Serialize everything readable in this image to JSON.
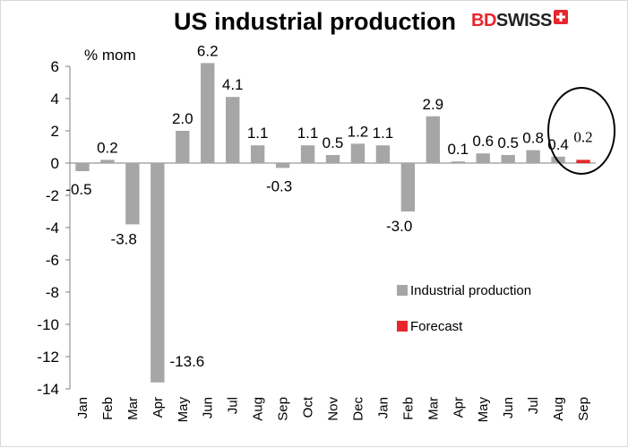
{
  "title": "US industrial production",
  "logo": {
    "brand_red": "BD",
    "brand_dark": "SWISS",
    "badge_icon": "swiss-cross-icon"
  },
  "chart_data": {
    "type": "bar",
    "title": "US industrial production",
    "ylabel": "% mom",
    "xlabel": "",
    "ylim": [
      -14,
      7
    ],
    "yticks": [
      6,
      4,
      2,
      0,
      -2,
      -4,
      -6,
      -8,
      -10,
      -12,
      -14
    ],
    "grid": false,
    "legend_position": "bottom-right",
    "categories": [
      "Jan",
      "Feb",
      "Mar",
      "Apr",
      "May",
      "Jun",
      "Jul",
      "Aug",
      "Sep",
      "Oct",
      "Nov",
      "Dec",
      "Jan",
      "Feb",
      "Mar",
      "Apr",
      "May",
      "Jun",
      "Jul",
      "Aug",
      "Sep"
    ],
    "series": [
      {
        "name": "Industrial production",
        "color": "#a6a6a6",
        "values": [
          -0.5,
          0.2,
          -3.8,
          -13.6,
          2.0,
          6.2,
          4.1,
          1.1,
          -0.3,
          1.1,
          0.5,
          1.2,
          1.1,
          -3.0,
          2.9,
          0.1,
          0.6,
          0.5,
          0.8,
          0.4,
          null
        ],
        "labels": [
          "-0.5",
          "0.2",
          "-3.8",
          "-13.6",
          "2.0",
          "6.2",
          "4.1",
          "1.1",
          "-0.3",
          "1.1",
          "0.5",
          "1.2",
          "1.1",
          "-3.0",
          "2.9",
          "0.1",
          "0.6",
          "0.5",
          "0.8",
          "0.4",
          ""
        ]
      },
      {
        "name": "Forecast",
        "color": "#e8262b",
        "values": [
          null,
          null,
          null,
          null,
          null,
          null,
          null,
          null,
          null,
          null,
          null,
          null,
          null,
          null,
          null,
          null,
          null,
          null,
          null,
          null,
          0.2
        ],
        "labels": [
          "",
          "",
          "",
          "",
          "",
          "",
          "",
          "",
          "",
          "",
          "",
          "",
          "",
          "",
          "",
          "",
          "",
          "",
          "",
          "",
          "0.2"
        ]
      }
    ],
    "annotation": {
      "type": "ellipse",
      "target_category_index": 20,
      "label": "0.2"
    }
  }
}
